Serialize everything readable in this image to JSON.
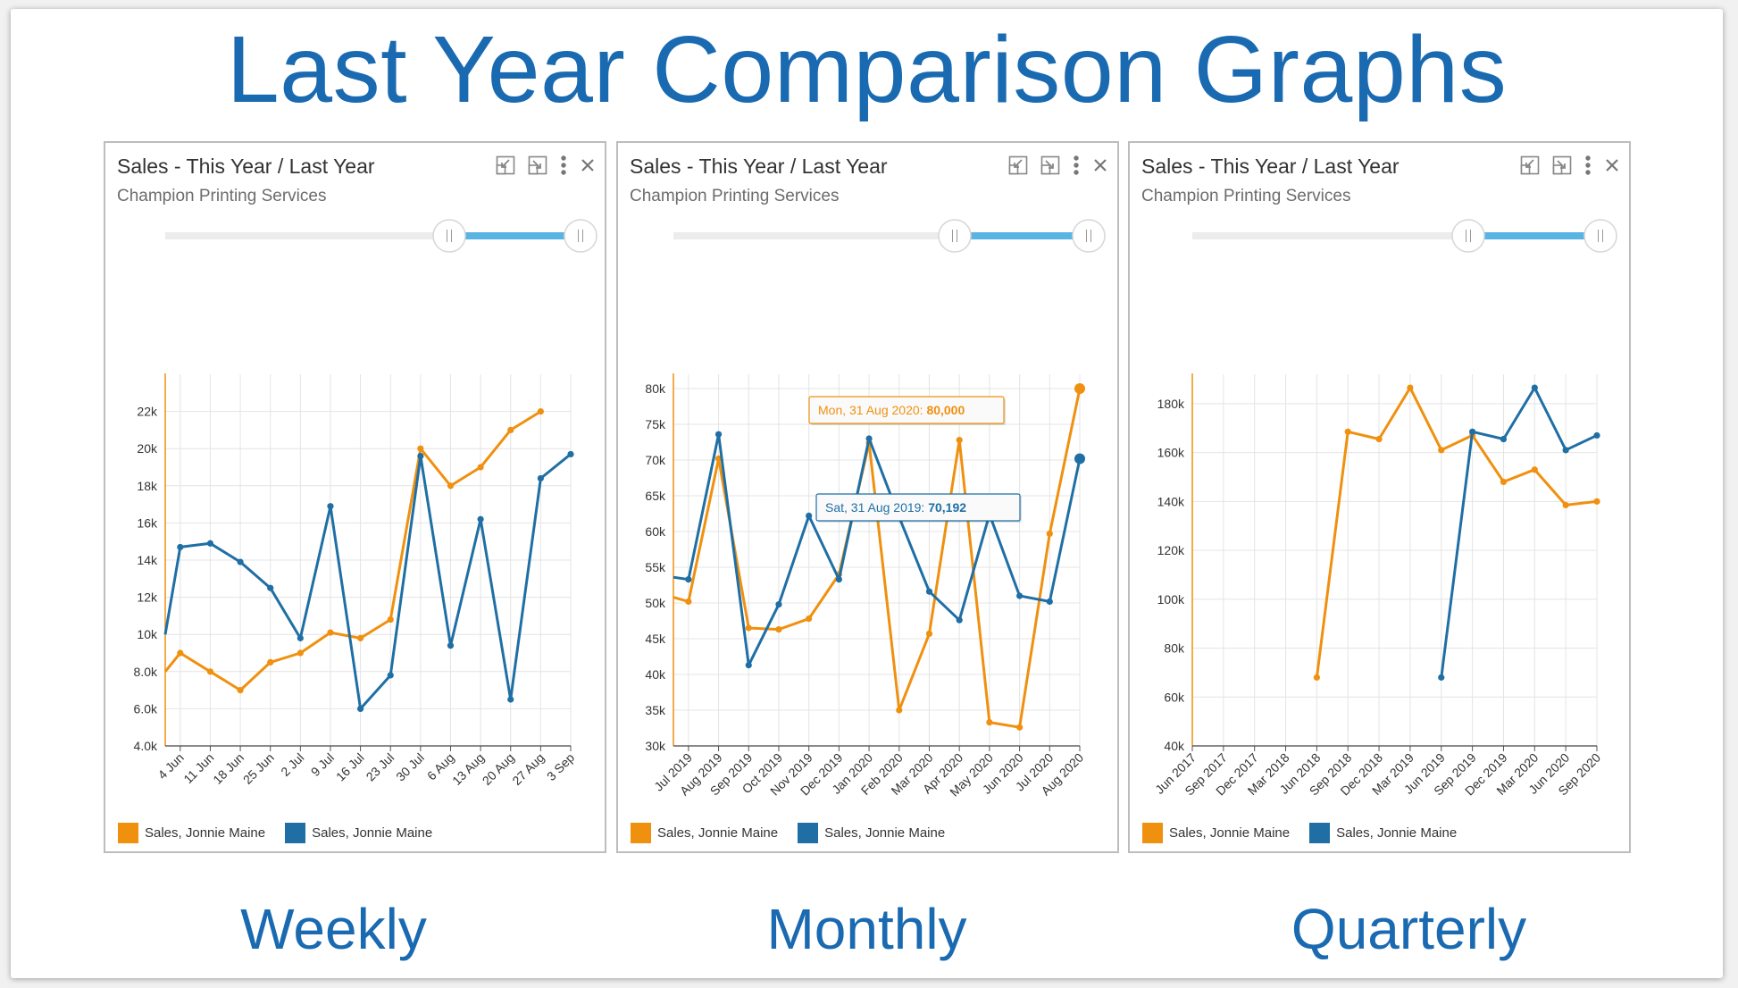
{
  "page_title": "Last Year Comparison Graphs",
  "panels": [
    {
      "title": "Sales - This Year / Last Year",
      "subtitle": "Champion Printing Services",
      "caption": "Weekly",
      "legend": [
        "Sales, Jonnie Maine",
        "Sales, Jonnie Maine"
      ],
      "icons": [
        "collapse-icon",
        "expand-icon",
        "more-icon",
        "close-icon"
      ]
    },
    {
      "title": "Sales - This Year / Last Year",
      "subtitle": "Champion Printing Services",
      "caption": "Monthly",
      "legend": [
        "Sales, Jonnie Maine",
        "Sales, Jonnie Maine"
      ],
      "icons": [
        "collapse-icon",
        "expand-icon",
        "more-icon",
        "close-icon"
      ]
    },
    {
      "title": "Sales - This Year / Last Year",
      "subtitle": "Champion Printing Services",
      "caption": "Quarterly",
      "legend": [
        "Sales, Jonnie Maine",
        "Sales, Jonnie Maine"
      ],
      "icons": [
        "collapse-icon",
        "expand-icon",
        "more-icon",
        "close-icon"
      ]
    }
  ],
  "colors": {
    "this_year": "#f0900f",
    "last_year": "#1f6fa5",
    "title": "#1a6ab1",
    "range_bar": "#5ab4e3"
  },
  "chart_data": [
    {
      "type": "line",
      "title": "Sales - This Year / Last Year",
      "categories": [
        "4 Jun",
        "11 Jun",
        "18 Jun",
        "25 Jun",
        "2 Jul",
        "9 Jul",
        "16 Jul",
        "23 Jul",
        "30 Jul",
        "6 Aug",
        "13 Aug",
        "20 Aug",
        "27 Aug",
        "3 Sep"
      ],
      "yticks": [
        4000,
        6000,
        8000,
        10000,
        12000,
        14000,
        16000,
        18000,
        20000,
        22000
      ],
      "ytick_labels": [
        "4.0k",
        "6.0k",
        "8.0k",
        "10k",
        "12k",
        "14k",
        "16k",
        "18k",
        "20k",
        "22k"
      ],
      "ylim": [
        4000,
        24000
      ],
      "grid": true,
      "legend_position": "bottom-left",
      "series": [
        {
          "name": "Sales, Jonnie Maine",
          "color": "#f0900f",
          "points": [
            [
              -0.5,
              8000
            ],
            [
              0,
              9000
            ],
            [
              1,
              8000
            ],
            [
              2,
              7000
            ],
            [
              3,
              8500
            ],
            [
              4,
              9000
            ],
            [
              5,
              10100
            ],
            [
              6,
              9800
            ],
            [
              7,
              10800
            ],
            [
              8,
              20000
            ],
            [
              9,
              18000
            ],
            [
              10,
              19000
            ],
            [
              11,
              21000
            ],
            [
              12,
              22000
            ]
          ]
        },
        {
          "name": "Sales, Jonnie Maine",
          "color": "#1f6fa5",
          "points": [
            [
              -0.5,
              10000
            ],
            [
              0,
              14700
            ],
            [
              1,
              14900
            ],
            [
              2,
              13900
            ],
            [
              3,
              12500
            ],
            [
              4,
              9800
            ],
            [
              5,
              16900
            ],
            [
              6,
              6000
            ],
            [
              7,
              7800
            ],
            [
              8,
              19600
            ],
            [
              9,
              9400
            ],
            [
              10,
              16200
            ],
            [
              11,
              6500
            ],
            [
              12,
              18400
            ],
            [
              13,
              19700
            ]
          ]
        }
      ]
    },
    {
      "type": "line",
      "title": "Sales - This Year / Last Year",
      "categories": [
        "Jul 2019",
        "Aug 2019",
        "Sep 2019",
        "Oct 2019",
        "Nov 2019",
        "Dec 2019",
        "Jan 2020",
        "Feb 2020",
        "Mar 2020",
        "Apr 2020",
        "May 2020",
        "Jun 2020",
        "Jul 2020",
        "Aug 2020"
      ],
      "yticks": [
        30000,
        35000,
        40000,
        45000,
        50000,
        55000,
        60000,
        65000,
        70000,
        75000,
        80000
      ],
      "ytick_labels": [
        "30k",
        "35k",
        "40k",
        "45k",
        "50k",
        "55k",
        "60k",
        "65k",
        "70k",
        "75k",
        "80k"
      ],
      "ylim": [
        30000,
        82000
      ],
      "grid": true,
      "legend_position": "bottom-left",
      "tooltips": [
        {
          "date": "Mon, 31 Aug 2020",
          "value": "80,000",
          "series": "this_year"
        },
        {
          "date": "Sat, 31 Aug 2019",
          "value": "70,192",
          "series": "last_year"
        }
      ],
      "series": [
        {
          "name": "Sales, Jonnie Maine",
          "color": "#f0900f",
          "points": [
            [
              -0.5,
              50800
            ],
            [
              0,
              50200
            ],
            [
              1,
              70200
            ],
            [
              2,
              46500
            ],
            [
              3,
              46300
            ],
            [
              4,
              47800
            ],
            [
              5,
              54000
            ],
            [
              6,
              72400
            ],
            [
              7,
              35000
            ],
            [
              8,
              45700
            ],
            [
              9,
              72800
            ],
            [
              10,
              33300
            ],
            [
              11,
              32600
            ],
            [
              12,
              59700
            ],
            [
              13,
              80000
            ]
          ]
        },
        {
          "name": "Sales, Jonnie Maine",
          "color": "#1f6fa5",
          "points": [
            [
              -0.5,
              53600
            ],
            [
              0,
              53300
            ],
            [
              1,
              73600
            ],
            [
              2,
              41300
            ],
            [
              3,
              49800
            ],
            [
              4,
              62200
            ],
            [
              5,
              53300
            ],
            [
              6,
              73000
            ],
            [
              7,
              62000
            ],
            [
              8,
              51600
            ],
            [
              9,
              47600
            ],
            [
              10,
              62400
            ],
            [
              11,
              51000
            ],
            [
              12,
              50200
            ],
            [
              13,
              70192
            ]
          ]
        }
      ]
    },
    {
      "type": "line",
      "title": "Sales - This Year / Last Year",
      "categories": [
        "Jun 2017",
        "Sep 2017",
        "Dec 2017",
        "Mar 2018",
        "Jun 2018",
        "Sep 2018",
        "Dec 2018",
        "Mar 2019",
        "Jun 2019",
        "Sep 2019",
        "Dec 2019",
        "Mar 2020",
        "Jun 2020",
        "Sep 2020"
      ],
      "yticks": [
        40000,
        60000,
        80000,
        100000,
        120000,
        140000,
        160000,
        180000
      ],
      "ytick_labels": [
        "40k",
        "60k",
        "80k",
        "100k",
        "120k",
        "140k",
        "160k",
        "180k"
      ],
      "ylim": [
        40000,
        192000
      ],
      "grid": true,
      "legend_position": "bottom-left",
      "series": [
        {
          "name": "Sales, Jonnie Maine",
          "color": "#f0900f",
          "points": [
            [
              4,
              68000
            ],
            [
              5,
              168500
            ],
            [
              6,
              165500
            ],
            [
              7,
              186500
            ],
            [
              8,
              161000
            ],
            [
              9,
              167000
            ],
            [
              10,
              148000
            ],
            [
              11,
              153000
            ],
            [
              12,
              138500
            ],
            [
              13,
              140000
            ]
          ]
        },
        {
          "name": "Sales, Jonnie Maine",
          "color": "#1f6fa5",
          "points": [
            [
              8,
              68000
            ],
            [
              9,
              168500
            ],
            [
              10,
              165500
            ],
            [
              11,
              186500
            ],
            [
              12,
              161000
            ],
            [
              13,
              167000
            ]
          ]
        }
      ]
    }
  ]
}
